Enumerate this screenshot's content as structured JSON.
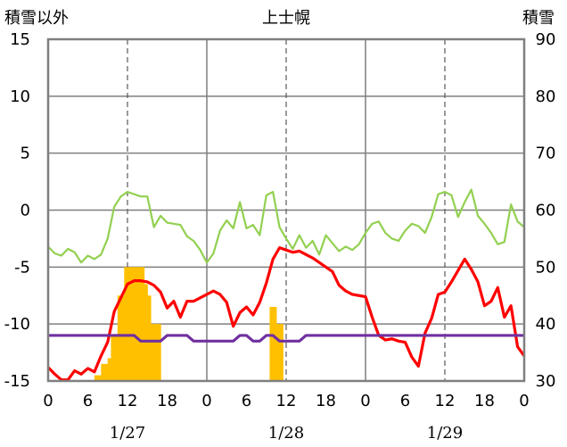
{
  "chart_data": {
    "type": "line",
    "title": "上士幌",
    "left_axis_label": "積雪以外",
    "right_axis_label": "積雪",
    "y_left": {
      "min": -15,
      "max": 15,
      "ticks": [
        15,
        10,
        5,
        0,
        -5,
        -10,
        -15
      ],
      "tick_labels": [
        "15",
        "10",
        "5",
        "0",
        "-5",
        "-10",
        "-15"
      ]
    },
    "y_right": {
      "min": 30,
      "max": 90,
      "ticks": [
        90,
        80,
        70,
        60,
        50,
        40,
        30
      ],
      "tick_labels": [
        "90",
        "80",
        "70",
        "60",
        "50",
        "40",
        "30"
      ]
    },
    "x": {
      "min": 0,
      "max": 72,
      "ticks": [
        0,
        6,
        12,
        18,
        24,
        30,
        36,
        42,
        48,
        54,
        60,
        66,
        72
      ],
      "tick_labels": [
        "0",
        "6",
        "12",
        "18",
        "0",
        "6",
        "12",
        "18",
        "0",
        "6",
        "12",
        "18",
        "0"
      ]
    },
    "day_boundaries": [
      24,
      48
    ],
    "noon_lines": [
      12,
      36,
      60
    ],
    "dates": [
      {
        "x": 12,
        "label": "1/27"
      },
      {
        "x": 36,
        "label": "1/28"
      },
      {
        "x": 60,
        "label": "1/29"
      }
    ],
    "grid": "horizontal major lines; solid day separators; dashed noon lines",
    "series": [
      {
        "kind": "bar",
        "axis": "right",
        "color": "#FFC000",
        "points": [
          [
            7.5,
            31
          ],
          [
            8.5,
            33
          ],
          [
            9.5,
            34
          ],
          [
            10,
            38
          ],
          [
            11,
            40
          ],
          [
            11,
            45
          ],
          [
            12,
            50
          ],
          [
            13,
            50
          ],
          [
            14,
            50
          ],
          [
            14.5,
            47
          ],
          [
            15,
            45
          ],
          [
            16,
            40
          ],
          [
            16.5,
            40
          ],
          [
            34,
            43
          ],
          [
            35,
            40
          ]
        ]
      },
      {
        "kind": "line",
        "axis": "left",
        "color": "#92D050",
        "width": 2.2,
        "points": [
          [
            0,
            -3.2
          ],
          [
            1,
            -3.8
          ],
          [
            2,
            -4.0
          ],
          [
            3,
            -3.4
          ],
          [
            4,
            -3.7
          ],
          [
            5,
            -4.6
          ],
          [
            6,
            -4.0
          ],
          [
            7,
            -4.3
          ],
          [
            8,
            -3.9
          ],
          [
            9,
            -2.5
          ],
          [
            10,
            0.3
          ],
          [
            11,
            1.2
          ],
          [
            12,
            1.6
          ],
          [
            13,
            1.4
          ],
          [
            14,
            1.2
          ],
          [
            15,
            1.2
          ],
          [
            16,
            -1.5
          ],
          [
            17,
            -0.5
          ],
          [
            18,
            -1.1
          ],
          [
            19,
            -1.2
          ],
          [
            20,
            -1.3
          ],
          [
            21,
            -2.3
          ],
          [
            22,
            -2.7
          ],
          [
            23,
            -3.5
          ],
          [
            24,
            -4.6
          ],
          [
            25,
            -3.8
          ],
          [
            26,
            -1.8
          ],
          [
            27,
            -0.9
          ],
          [
            28,
            -1.6
          ],
          [
            29,
            0.7
          ],
          [
            30,
            -1.6
          ],
          [
            31,
            -1.3
          ],
          [
            32,
            -2.2
          ],
          [
            33,
            1.3
          ],
          [
            34,
            1.6
          ],
          [
            35,
            -1.5
          ],
          [
            36,
            -2.5
          ],
          [
            37,
            -3.4
          ],
          [
            38,
            -2.2
          ],
          [
            39,
            -3.3
          ],
          [
            40,
            -2.7
          ],
          [
            41,
            -3.9
          ],
          [
            42,
            -2.2
          ],
          [
            43,
            -2.9
          ],
          [
            44,
            -3.6
          ],
          [
            45,
            -3.2
          ],
          [
            46,
            -3.5
          ],
          [
            47,
            -3.0
          ],
          [
            48,
            -2.0
          ],
          [
            49,
            -1.2
          ],
          [
            50,
            -1.0
          ],
          [
            51,
            -2.0
          ],
          [
            52,
            -2.5
          ],
          [
            53,
            -2.7
          ],
          [
            54,
            -1.8
          ],
          [
            55,
            -1.2
          ],
          [
            56,
            -1.4
          ],
          [
            57,
            -2.0
          ],
          [
            58,
            -0.6
          ],
          [
            59,
            1.4
          ],
          [
            60,
            1.6
          ],
          [
            61,
            1.3
          ],
          [
            62,
            -0.6
          ],
          [
            63,
            0.7
          ],
          [
            64,
            1.8
          ],
          [
            65,
            -0.5
          ],
          [
            66,
            -1.2
          ],
          [
            67,
            -2.0
          ],
          [
            68,
            -3.0
          ],
          [
            69,
            -2.8
          ],
          [
            70,
            0.5
          ],
          [
            71,
            -1.0
          ],
          [
            72,
            -1.5
          ]
        ]
      },
      {
        "kind": "line",
        "axis": "left",
        "color": "#FF0000",
        "width": 3.2,
        "points": [
          [
            0,
            -13.8
          ],
          [
            1,
            -14.4
          ],
          [
            2,
            -14.9
          ],
          [
            3,
            -14.9
          ],
          [
            4,
            -14.1
          ],
          [
            5,
            -14.4
          ],
          [
            6,
            -13.9
          ],
          [
            7,
            -14.2
          ],
          [
            8,
            -12.8
          ],
          [
            9,
            -11.6
          ],
          [
            10,
            -8.9
          ],
          [
            11,
            -7.7
          ],
          [
            12,
            -6.5
          ],
          [
            13,
            -6.2
          ],
          [
            14,
            -6.2
          ],
          [
            15,
            -6.3
          ],
          [
            16,
            -6.6
          ],
          [
            17,
            -7.2
          ],
          [
            18,
            -8.6
          ],
          [
            19,
            -8.0
          ],
          [
            20,
            -9.4
          ],
          [
            21,
            -8.0
          ],
          [
            22,
            -8.0
          ],
          [
            23,
            -7.7
          ],
          [
            24,
            -7.4
          ],
          [
            25,
            -7.1
          ],
          [
            26,
            -7.4
          ],
          [
            27,
            -8.1
          ],
          [
            28,
            -10.2
          ],
          [
            29,
            -9.0
          ],
          [
            30,
            -8.5
          ],
          [
            31,
            -9.2
          ],
          [
            32,
            -8.1
          ],
          [
            33,
            -6.4
          ],
          [
            34,
            -4.3
          ],
          [
            35,
            -3.3
          ],
          [
            36,
            -3.5
          ],
          [
            37,
            -3.7
          ],
          [
            38,
            -3.6
          ],
          [
            39,
            -3.9
          ],
          [
            40,
            -4.2
          ],
          [
            41,
            -4.6
          ],
          [
            42,
            -5.0
          ],
          [
            43,
            -5.4
          ],
          [
            44,
            -6.6
          ],
          [
            45,
            -7.1
          ],
          [
            46,
            -7.4
          ],
          [
            47,
            -7.5
          ],
          [
            48,
            -7.6
          ],
          [
            49,
            -9.4
          ],
          [
            50,
            -11.0
          ],
          [
            51,
            -11.4
          ],
          [
            52,
            -11.3
          ],
          [
            53,
            -11.5
          ],
          [
            54,
            -11.6
          ],
          [
            55,
            -12.9
          ],
          [
            56,
            -13.7
          ],
          [
            57,
            -10.8
          ],
          [
            58,
            -9.5
          ],
          [
            59,
            -7.4
          ],
          [
            60,
            -7.2
          ],
          [
            61,
            -6.3
          ],
          [
            62,
            -5.3
          ],
          [
            63,
            -4.3
          ],
          [
            64,
            -5.2
          ],
          [
            65,
            -6.3
          ],
          [
            66,
            -8.4
          ],
          [
            67,
            -8.0
          ],
          [
            68,
            -6.8
          ],
          [
            69,
            -9.4
          ],
          [
            70,
            -8.4
          ],
          [
            71,
            -12.0
          ],
          [
            72,
            -12.8
          ]
        ]
      },
      {
        "kind": "line",
        "axis": "left",
        "color": "#7030A0",
        "width": 3.2,
        "points": [
          [
            0,
            -11.0
          ],
          [
            13,
            -11.0
          ],
          [
            14,
            -11.5
          ],
          [
            17,
            -11.5
          ],
          [
            18,
            -11.0
          ],
          [
            21,
            -11.0
          ],
          [
            22,
            -11.5
          ],
          [
            28,
            -11.5
          ],
          [
            29,
            -11.0
          ],
          [
            30,
            -11.0
          ],
          [
            31,
            -11.5
          ],
          [
            32,
            -11.5
          ],
          [
            33,
            -11.0
          ],
          [
            34,
            -11.0
          ],
          [
            35,
            -11.5
          ],
          [
            38,
            -11.5
          ],
          [
            39,
            -11.0
          ],
          [
            72,
            -11.0
          ]
        ]
      }
    ]
  }
}
